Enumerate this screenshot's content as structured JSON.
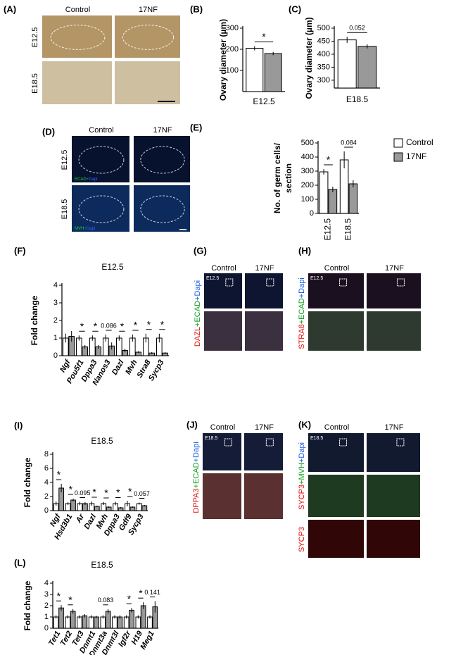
{
  "chart_data": [
    {
      "type": "bar",
      "label": "(B)",
      "ylabel": "Ovary diameter (µm)",
      "categories": [
        "E12.5"
      ],
      "series": [
        {
          "color": "#ffffff",
          "values": [
            205
          ],
          "errors": [
            10
          ]
        },
        {
          "color": "#999999",
          "values": [
            180
          ],
          "errors": [
            8
          ]
        }
      ],
      "annotations": [
        "*"
      ],
      "ylim": [
        0,
        300
      ],
      "yticks": [
        100,
        200,
        300
      ]
    },
    {
      "type": "bar",
      "label": "(C)",
      "ylabel": "Ovary diameter (µm)",
      "categories": [
        "E18.5"
      ],
      "series": [
        {
          "color": "#ffffff",
          "values": [
            455
          ],
          "errors": [
            12
          ]
        },
        {
          "color": "#999999",
          "values": [
            430
          ],
          "errors": [
            8
          ]
        }
      ],
      "annotations": [
        "0.052"
      ],
      "ylim": [
        270,
        500
      ],
      "yticks": [
        300,
        350,
        400,
        450,
        500
      ]
    },
    {
      "type": "bar",
      "label": "(E)",
      "ylabel": [
        "No. of germ cells/",
        "section"
      ],
      "categories": [
        "E12.5",
        "E18.5"
      ],
      "series": [
        {
          "name": "Control",
          "color": "#ffffff",
          "values": [
            295,
            380
          ],
          "errors": [
            20,
            60
          ]
        },
        {
          "name": "17NF",
          "color": "#999999",
          "values": [
            170,
            210
          ],
          "errors": [
            20,
            25
          ]
        }
      ],
      "annotations": [
        "*",
        "0.084"
      ],
      "ylim": [
        0,
        500
      ],
      "yticks": [
        0,
        100,
        200,
        300,
        400,
        500
      ],
      "legend": "outside-right"
    },
    {
      "type": "bar",
      "label": "(F)",
      "title": "E12.5",
      "ylabel": "Fold change",
      "categories": [
        "Ngf",
        "Pou5f1",
        "Dppa3",
        "Nanos3",
        "Dazl",
        "Mvh",
        "Stra8",
        "Sycp3"
      ],
      "series": [
        {
          "color": "#ffffff",
          "values": [
            1,
            1,
            1,
            1,
            1,
            1,
            1,
            1
          ],
          "errors": [
            0.25,
            0.15,
            0.15,
            0.2,
            0.15,
            0.2,
            0.25,
            0.25
          ]
        },
        {
          "color": "#999999",
          "values": [
            1.1,
            0.5,
            0.5,
            0.55,
            0.3,
            0.2,
            0.15,
            0.15
          ],
          "errors": [
            0.3,
            0.1,
            0.1,
            0.2,
            0.1,
            0.05,
            0.05,
            0.05
          ]
        }
      ],
      "annotations": [
        null,
        "*",
        "*",
        "0.086",
        "*",
        "*",
        "*",
        "*"
      ],
      "ylim": [
        0,
        4
      ],
      "yticks": [
        0,
        1,
        2,
        3,
        4
      ]
    },
    {
      "type": "bar",
      "label": "(I)",
      "title": "E18.5",
      "ylabel": "Fold change",
      "categories": [
        "Ngf",
        "Hsd3b1",
        "Ar",
        "Dazl",
        "Mvh",
        "Dppa3",
        "Gdf9",
        "Sycp3"
      ],
      "series": [
        {
          "color": "#ffffff",
          "values": [
            1,
            1,
            1,
            1,
            1,
            1,
            1,
            1
          ],
          "errors": [
            0.3,
            0.2,
            0.25,
            0.3,
            0.2,
            0.25,
            0.4,
            0.15
          ]
        },
        {
          "color": "#999999",
          "values": [
            3.2,
            1.5,
            1.0,
            0.6,
            0.5,
            0.4,
            0.5,
            0.7
          ],
          "errors": [
            0.6,
            0.2,
            0.2,
            0.1,
            0.1,
            0.1,
            0.1,
            0.1
          ]
        }
      ],
      "annotations": [
        "*",
        "*",
        "0.095",
        "*",
        "*",
        "*",
        "*",
        "0.057"
      ],
      "ylim": [
        0,
        8
      ],
      "yticks": [
        0,
        2,
        4,
        6,
        8
      ]
    },
    {
      "type": "bar",
      "label": "(L)",
      "title": "E18.5",
      "ylabel": "Fold change",
      "categories": [
        "Tet1",
        "Tet2",
        "Tet3",
        "Dnmt1",
        "Dnmt3a",
        "Dnmt3l",
        "Igf2r",
        "H19",
        "Meg1"
      ],
      "series": [
        {
          "color": "#ffffff",
          "values": [
            1,
            1,
            1,
            1,
            1,
            1,
            1,
            1,
            1
          ],
          "errors": [
            0.15,
            0.15,
            0.15,
            0.15,
            0.15,
            0.15,
            0.15,
            0.15,
            0.15
          ]
        },
        {
          "color": "#999999",
          "values": [
            1.8,
            1.5,
            1.1,
            1.0,
            1.5,
            1.0,
            1.6,
            2.0,
            1.9
          ],
          "errors": [
            0.25,
            0.2,
            0.15,
            0.1,
            0.2,
            0.15,
            0.2,
            0.3,
            0.5
          ]
        }
      ],
      "annotations": [
        "*",
        "*",
        null,
        null,
        "0.083",
        null,
        "*",
        "*",
        "0.141"
      ],
      "ylim": [
        0,
        4
      ],
      "yticks": [
        0,
        1,
        2,
        3,
        4
      ]
    }
  ],
  "micrographs": [
    {
      "label": "(A)",
      "columns": [
        "Control",
        "17NF"
      ],
      "rows": [
        "E12.5",
        "E18.5"
      ]
    },
    {
      "label": "(D)",
      "columns": [
        "Control",
        "17NF"
      ],
      "rows": [
        "E12.5",
        "E18.5"
      ],
      "stains": [
        [
          {
            "text": "ECAD",
            "color": "#22cc33"
          },
          {
            "text": "+Dapi",
            "color": "#3366ff"
          }
        ],
        [
          {
            "text": "MVH",
            "color": "#22cc33"
          },
          {
            "text": "+Dapi",
            "color": "#3366ff"
          }
        ]
      ]
    },
    {
      "label": "(G)",
      "columns": [
        "Control",
        "17NF"
      ],
      "inset": "E12.5",
      "stains": [
        [
          {
            "text": "DAZL",
            "color": "#e01010"
          },
          {
            "text": "+ECAD",
            "color": "#10a020"
          },
          {
            "text": "+Dapi",
            "color": "#2060e0"
          }
        ]
      ]
    },
    {
      "label": "(H)",
      "columns": [
        "Control",
        "17NF"
      ],
      "inset": "E12.5",
      "stains": [
        [
          {
            "text": "STRA8",
            "color": "#e01010"
          },
          {
            "text": "+ECAD",
            "color": "#10a020"
          },
          {
            "text": "+Dapi",
            "color": "#2060e0"
          }
        ]
      ]
    },
    {
      "label": "(J)",
      "columns": [
        "Control",
        "17NF"
      ],
      "inset": "E18.5",
      "stains": [
        [
          {
            "text": "DPPA3",
            "color": "#e01010"
          },
          {
            "text": "+ECAD",
            "color": "#10a020"
          },
          {
            "text": "+Dapi",
            "color": "#2060e0"
          }
        ]
      ]
    },
    {
      "label": "(K)",
      "columns": [
        "Control",
        "17NF"
      ],
      "inset": "E18.5",
      "stains": [
        [
          {
            "text": "SYCP3",
            "color": "#e01010"
          },
          {
            "text": "+MVH",
            "color": "#10a020"
          },
          {
            "text": "+Dapi",
            "color": "#2060e0"
          }
        ],
        [
          {
            "text": "SYCP3",
            "color": "#e01010"
          }
        ]
      ]
    }
  ]
}
